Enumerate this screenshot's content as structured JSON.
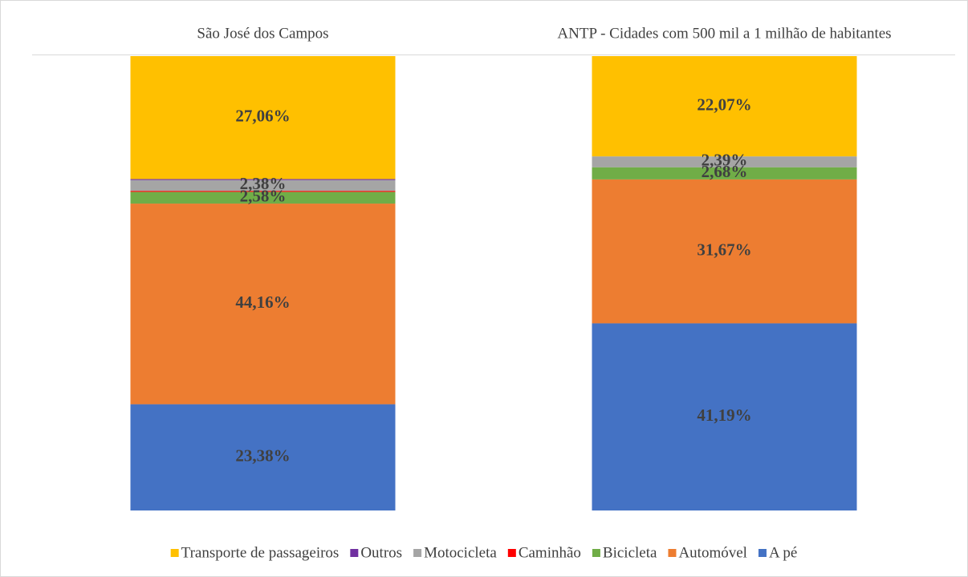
{
  "chart_data": {
    "type": "stacked_bar",
    "categories": [
      "São José dos Campos",
      "ANTP - Cidades com 500 mil a 1 milhão de habitantes"
    ],
    "ylim": [
      0,
      100
    ],
    "legend": "bottom",
    "series": [
      {
        "name": "A pé",
        "color": "#4472C4",
        "values": [
          23.38,
          41.19
        ],
        "value_labels": [
          "23,38%",
          "41,19%"
        ]
      },
      {
        "name": "Automóvel",
        "color": "#ED7D31",
        "values": [
          44.16,
          31.67
        ],
        "value_labels": [
          "44,16%",
          "31,67%"
        ]
      },
      {
        "name": "Bicicleta",
        "color": "#70AD47",
        "values": [
          2.58,
          2.68
        ],
        "value_labels": [
          "2,58%",
          "2,68%"
        ]
      },
      {
        "name": "Caminhão",
        "color": "#FF0000",
        "values": [
          0.22,
          0
        ]
      },
      {
        "name": "Motocicleta",
        "color": "#A5A5A5",
        "values": [
          2.38,
          2.39
        ],
        "value_labels": [
          "2,38%",
          "2,39%"
        ]
      },
      {
        "name": "Outros",
        "color": "#7030A0",
        "values": [
          0.22,
          0
        ]
      },
      {
        "name": "Transporte de passageiros",
        "color": "#FFC000",
        "values": [
          27.06,
          22.07
        ],
        "value_labels": [
          "27,06%",
          "22,07%"
        ]
      }
    ]
  }
}
